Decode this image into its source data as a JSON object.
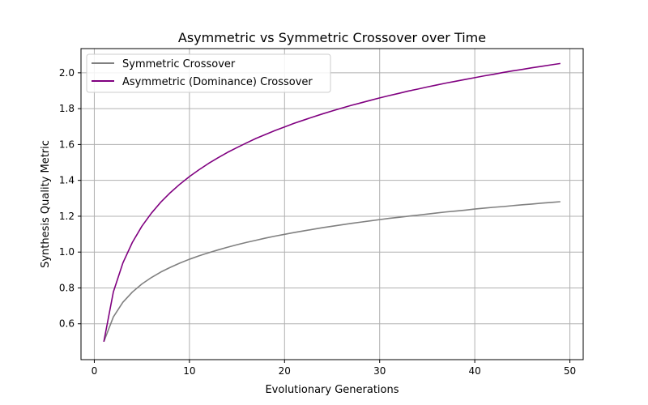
{
  "chart_data": {
    "type": "line",
    "title": "Asymmetric vs Symmetric Crossover over Time",
    "xlabel": "Evolutionary Generations",
    "ylabel": "Synthesis Quality Metric",
    "xlim": [
      -1.4,
      51.4
    ],
    "ylim": [
      0.4,
      2.135
    ],
    "xticks": [
      0,
      10,
      20,
      30,
      40,
      50
    ],
    "xtick_labels": [
      "0",
      "10",
      "20",
      "30",
      "40",
      "50"
    ],
    "yticks": [
      0.6,
      0.8,
      1.0,
      1.2,
      1.4,
      1.6,
      1.8,
      2.0
    ],
    "ytick_labels": [
      "0.6",
      "0.8",
      "1.0",
      "1.2",
      "1.4",
      "1.6",
      "1.8",
      "2.0"
    ],
    "grid": true,
    "legend_position": "upper-left",
    "x": [
      1,
      2,
      3,
      4,
      5,
      6,
      7,
      8,
      9,
      10,
      11,
      12,
      13,
      14,
      15,
      16,
      17,
      18,
      19,
      20,
      21,
      22,
      23,
      24,
      25,
      26,
      27,
      28,
      29,
      30,
      31,
      32,
      33,
      34,
      35,
      36,
      37,
      38,
      39,
      40,
      41,
      42,
      43,
      44,
      45,
      46,
      47,
      48,
      49
    ],
    "series": [
      {
        "name": "Symmetric Crossover",
        "color": "#808080",
        "values": [
          0.5,
          0.638,
          0.72,
          0.777,
          0.822,
          0.858,
          0.889,
          0.915,
          0.939,
          0.96,
          0.979,
          0.996,
          1.012,
          1.027,
          1.041,
          1.054,
          1.066,
          1.078,
          1.089,
          1.099,
          1.109,
          1.118,
          1.127,
          1.136,
          1.144,
          1.152,
          1.16,
          1.167,
          1.174,
          1.181,
          1.188,
          1.194,
          1.2,
          1.206,
          1.212,
          1.218,
          1.224,
          1.229,
          1.234,
          1.24,
          1.245,
          1.25,
          1.254,
          1.259,
          1.264,
          1.268,
          1.273,
          1.277,
          1.281
        ]
      },
      {
        "name": "Asymmetric (Dominance) Crossover",
        "color": "#800080",
        "values": [
          0.5,
          0.777,
          0.939,
          1.054,
          1.144,
          1.217,
          1.279,
          1.332,
          1.379,
          1.421,
          1.459,
          1.494,
          1.526,
          1.556,
          1.583,
          1.609,
          1.634,
          1.656,
          1.678,
          1.698,
          1.718,
          1.736,
          1.754,
          1.771,
          1.787,
          1.803,
          1.818,
          1.832,
          1.846,
          1.86,
          1.873,
          1.885,
          1.898,
          1.909,
          1.921,
          1.932,
          1.943,
          1.953,
          1.963,
          1.973,
          1.983,
          1.992,
          2.002,
          2.011,
          2.019,
          2.028,
          2.036,
          2.044,
          2.052
        ]
      }
    ]
  }
}
